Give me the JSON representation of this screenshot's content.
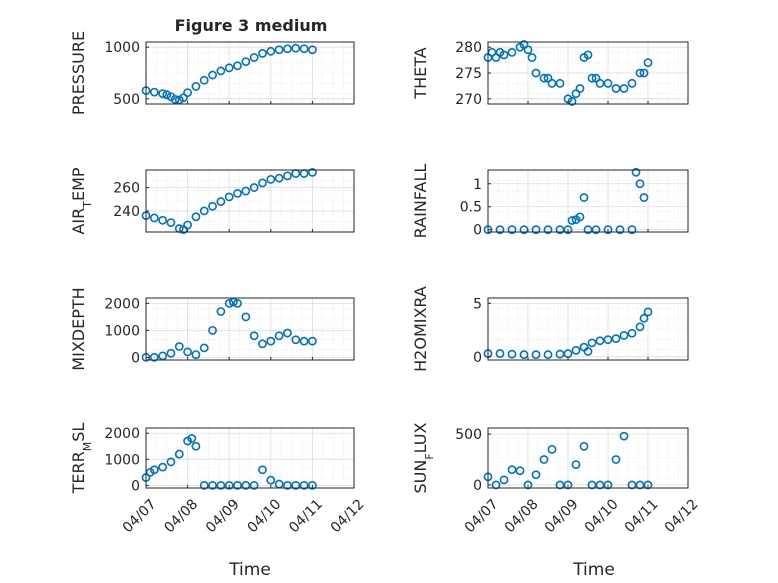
{
  "figure": {
    "title": "Figure 3 medium",
    "xlabel": "Time",
    "xticks": [
      "04/07",
      "04/08",
      "04/09",
      "04/10",
      "04/11",
      "04/12"
    ],
    "marker_color": "#0072BD",
    "grid": true
  },
  "chart_data": [
    {
      "type": "scatter",
      "ylabel": "PRESSURE",
      "yticks": [
        500,
        1000
      ],
      "ylim": [
        450,
        1050
      ],
      "xlim": [
        0,
        5
      ],
      "x": [
        0.0,
        0.2,
        0.4,
        0.5,
        0.6,
        0.7,
        0.8,
        0.9,
        1.0,
        1.2,
        1.4,
        1.6,
        1.8,
        2.0,
        2.2,
        2.4,
        2.6,
        2.8,
        3.0,
        3.2,
        3.4,
        3.6,
        3.8,
        4.0
      ],
      "y": [
        580,
        565,
        550,
        540,
        520,
        495,
        490,
        510,
        560,
        620,
        680,
        730,
        770,
        800,
        820,
        860,
        900,
        940,
        960,
        975,
        985,
        990,
        985,
        975
      ]
    },
    {
      "type": "scatter",
      "ylabel": "THETA",
      "yticks": [
        270,
        275,
        280
      ],
      "ylim": [
        269,
        281
      ],
      "xlim": [
        0,
        5
      ],
      "x": [
        0.0,
        0.1,
        0.2,
        0.3,
        0.4,
        0.6,
        0.8,
        0.9,
        1.0,
        1.1,
        1.2,
        1.4,
        1.5,
        1.6,
        1.8,
        2.0,
        2.1,
        2.2,
        2.3,
        2.4,
        2.5,
        2.6,
        2.7,
        2.8,
        3.0,
        3.2,
        3.4,
        3.6,
        3.8,
        3.9,
        4.0
      ],
      "y": [
        278,
        279,
        278,
        279,
        278.5,
        279,
        280,
        280.5,
        279.5,
        278,
        275,
        274,
        274,
        273,
        273,
        270,
        269.5,
        271,
        272,
        278,
        278.5,
        274,
        274,
        273,
        273,
        272,
        272,
        273,
        275,
        275,
        277
      ]
    },
    {
      "type": "scatter",
      "ylabel": "AIR_TEMP",
      "yticks": [
        240,
        260
      ],
      "ylim": [
        222,
        275
      ],
      "xlim": [
        0,
        5
      ],
      "x": [
        0.0,
        0.2,
        0.4,
        0.6,
        0.8,
        0.9,
        1.0,
        1.2,
        1.4,
        1.6,
        1.8,
        2.0,
        2.2,
        2.4,
        2.6,
        2.8,
        3.0,
        3.2,
        3.4,
        3.6,
        3.8,
        4.0
      ],
      "y": [
        236,
        234,
        232,
        230,
        225,
        224,
        228,
        235,
        240,
        244,
        248,
        252,
        255,
        257,
        260,
        264,
        267,
        268,
        270,
        272,
        272,
        273
      ]
    },
    {
      "type": "scatter",
      "ylabel": "RAINFALL",
      "yticks": [
        0,
        0.5,
        1
      ],
      "ylim": [
        -0.05,
        1.3
      ],
      "xlim": [
        0,
        5
      ],
      "x": [
        0.0,
        0.3,
        0.6,
        0.9,
        1.2,
        1.5,
        1.8,
        2.0,
        2.1,
        2.2,
        2.3,
        2.4,
        2.5,
        2.7,
        3.0,
        3.3,
        3.6,
        3.7,
        3.8,
        3.9
      ],
      "y": [
        0,
        0,
        0,
        0,
        0,
        0,
        0,
        0,
        0.2,
        0.22,
        0.28,
        0.7,
        0,
        0,
        0,
        0,
        0,
        1.25,
        1.0,
        0.7
      ]
    },
    {
      "type": "scatter",
      "ylabel": "MIXDEPTH",
      "yticks": [
        0,
        1000,
        2000
      ],
      "ylim": [
        -100,
        2200
      ],
      "xlim": [
        0,
        5
      ],
      "x": [
        0.0,
        0.2,
        0.4,
        0.6,
        0.8,
        1.0,
        1.2,
        1.4,
        1.6,
        1.8,
        2.0,
        2.1,
        2.2,
        2.4,
        2.6,
        2.8,
        3.0,
        3.2,
        3.4,
        3.6,
        3.8,
        4.0
      ],
      "y": [
        0,
        0,
        50,
        150,
        400,
        200,
        100,
        350,
        1000,
        1700,
        2000,
        2050,
        2000,
        1500,
        800,
        500,
        600,
        800,
        900,
        650,
        600,
        600
      ]
    },
    {
      "type": "scatter",
      "ylabel": "H2OMIXRA",
      "yticks": [
        0,
        5
      ],
      "ylim": [
        -0.3,
        5.5
      ],
      "xlim": [
        0,
        5
      ],
      "x": [
        0.0,
        0.3,
        0.6,
        0.9,
        1.2,
        1.5,
        1.8,
        2.0,
        2.2,
        2.4,
        2.5,
        2.6,
        2.8,
        3.0,
        3.2,
        3.4,
        3.6,
        3.8,
        3.9,
        4.0
      ],
      "y": [
        0.3,
        0.3,
        0.25,
        0.2,
        0.2,
        0.2,
        0.25,
        0.3,
        0.6,
        0.9,
        0.5,
        1.3,
        1.5,
        1.6,
        1.7,
        2.0,
        2.2,
        2.8,
        3.6,
        4.2
      ]
    },
    {
      "type": "scatter",
      "ylabel": "TERR_MSL",
      "yticks": [
        0,
        1000,
        2000
      ],
      "ylim": [
        -100,
        2200
      ],
      "xlim": [
        0,
        5
      ],
      "x": [
        0.0,
        0.1,
        0.2,
        0.4,
        0.6,
        0.8,
        1.0,
        1.1,
        1.2,
        1.4,
        1.6,
        1.8,
        2.0,
        2.2,
        2.4,
        2.6,
        2.8,
        3.0,
        3.2,
        3.4,
        3.6,
        3.8,
        4.0
      ],
      "y": [
        300,
        500,
        600,
        700,
        900,
        1200,
        1700,
        1800,
        1500,
        0,
        0,
        0,
        0,
        0,
        0,
        0,
        600,
        200,
        50,
        0,
        0,
        0,
        0
      ]
    },
    {
      "type": "scatter",
      "ylabel": "SUN_FLUX",
      "yticks": [
        0,
        500
      ],
      "ylim": [
        -30,
        560
      ],
      "xlim": [
        0,
        5
      ],
      "x": [
        0.0,
        0.2,
        0.4,
        0.6,
        0.8,
        1.0,
        1.2,
        1.4,
        1.6,
        1.8,
        2.0,
        2.2,
        2.4,
        2.6,
        2.8,
        3.0,
        3.2,
        3.4,
        3.6,
        3.8,
        4.0
      ],
      "y": [
        80,
        0,
        50,
        150,
        140,
        0,
        100,
        250,
        350,
        0,
        0,
        200,
        380,
        0,
        0,
        0,
        250,
        480,
        0,
        0,
        0
      ]
    }
  ]
}
